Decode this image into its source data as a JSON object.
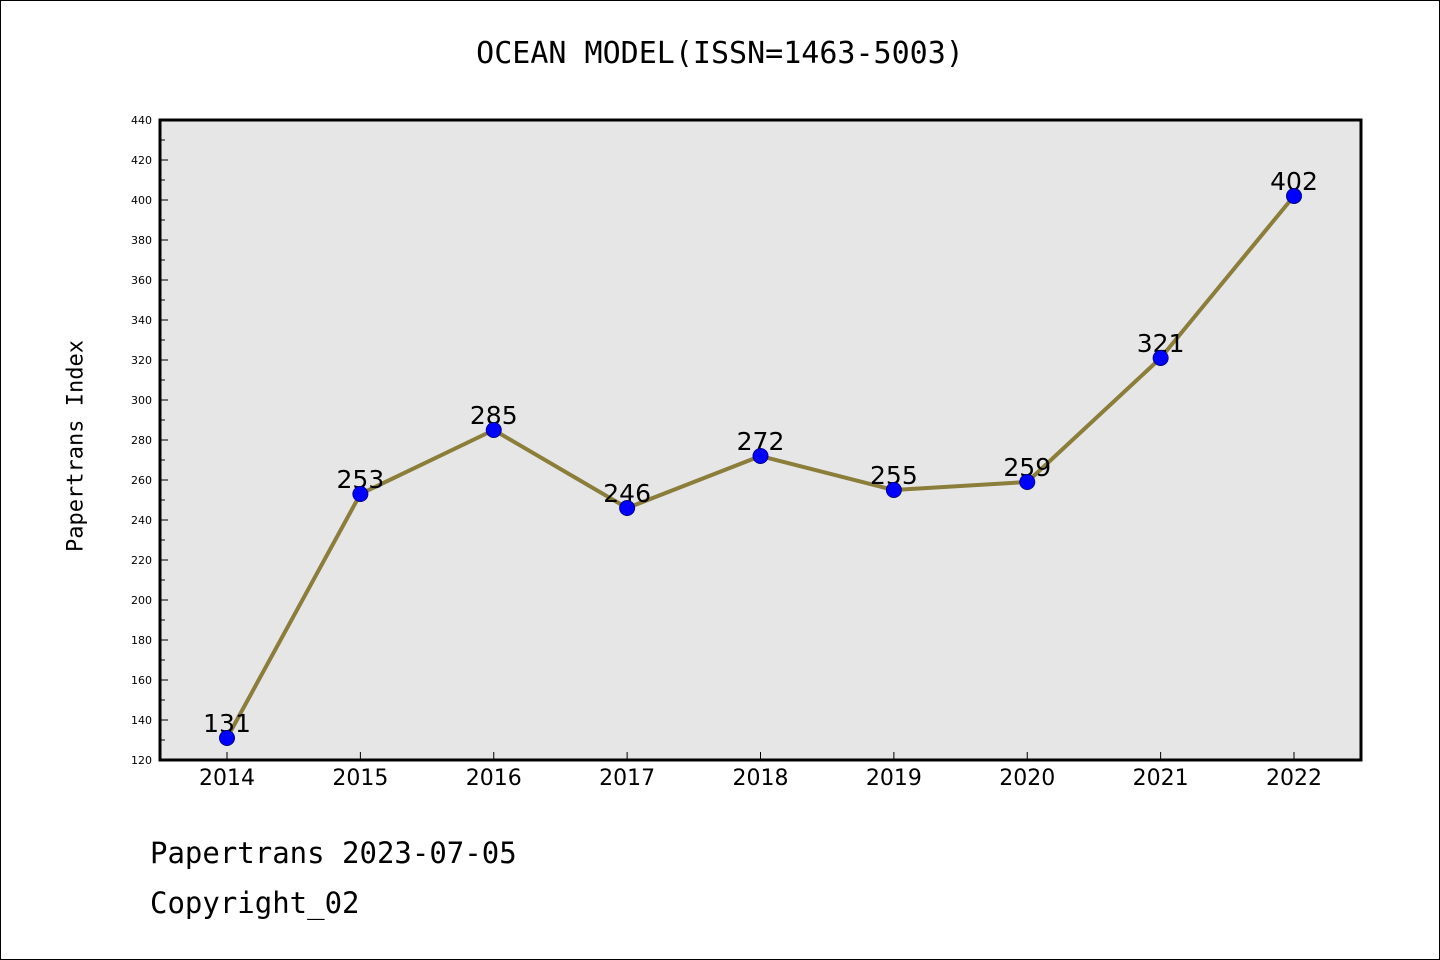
{
  "footer": {
    "line1": "Papertrans 2023-07-05",
    "line2": "Copyright_02"
  },
  "chart_data": {
    "type": "line",
    "title": "OCEAN MODEL(ISSN=1463-5003)",
    "xlabel": "",
    "ylabel": "Papertrans Index",
    "categories": [
      "2014",
      "2015",
      "2016",
      "2017",
      "2018",
      "2019",
      "2020",
      "2021",
      "2022"
    ],
    "series": [
      {
        "values": [
          131,
          253,
          285,
          246,
          272,
          255,
          259,
          321,
          402
        ]
      }
    ],
    "data_labels": [
      "131",
      "253",
      "285",
      "246",
      "272",
      "255",
      "259",
      "321",
      "402"
    ],
    "ylim": [
      120,
      440
    ],
    "y_ticks": [
      "120",
      "140",
      "160",
      "180",
      "200",
      "220",
      "240",
      "260",
      "280",
      "300",
      "320",
      "340",
      "360",
      "380",
      "400",
      "420",
      "440"
    ],
    "grid": false,
    "legend": "none",
    "colors": {
      "line": "#8b7d3a",
      "marker": "#0000ff",
      "marker_edge": "#00008b",
      "plot_background": "#e6e6e6"
    }
  }
}
